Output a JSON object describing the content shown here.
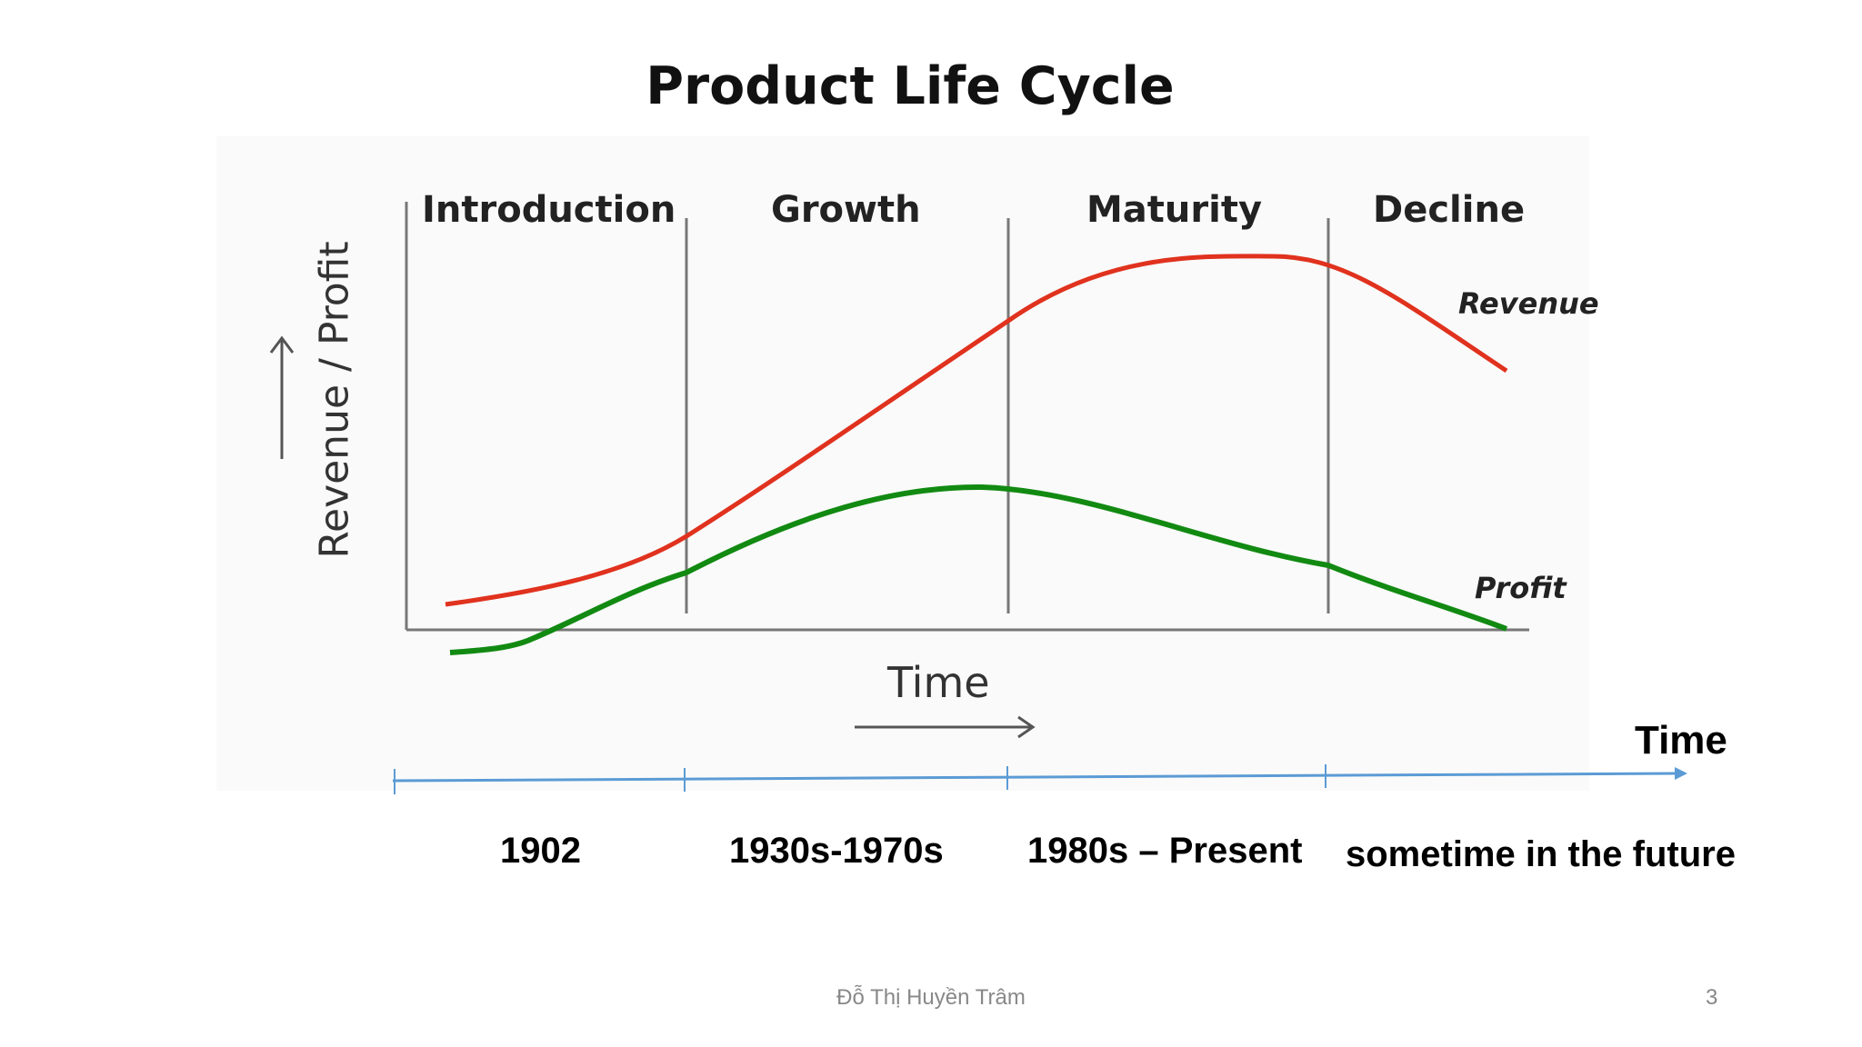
{
  "slide": {
    "title": "Product Life Cycle",
    "footer_author": "Đỗ Thị Huyền Trâm",
    "page_number": "3"
  },
  "diagram": {
    "phases": [
      "Introduction",
      "Growth",
      "Maturity",
      "Decline"
    ],
    "curves": [
      "Revenue",
      "Profit"
    ],
    "y_label": "Revenue / Profit",
    "x_label": "Time",
    "colors": {
      "revenue": "#e0321e",
      "profit": "#128a12",
      "axes": "#777777",
      "timeline": "#5b9bd5"
    }
  },
  "timeline": {
    "title": "Time",
    "eras": [
      "1902",
      "1930s-1970s",
      "1980s – Present",
      "sometime in the future"
    ]
  }
}
